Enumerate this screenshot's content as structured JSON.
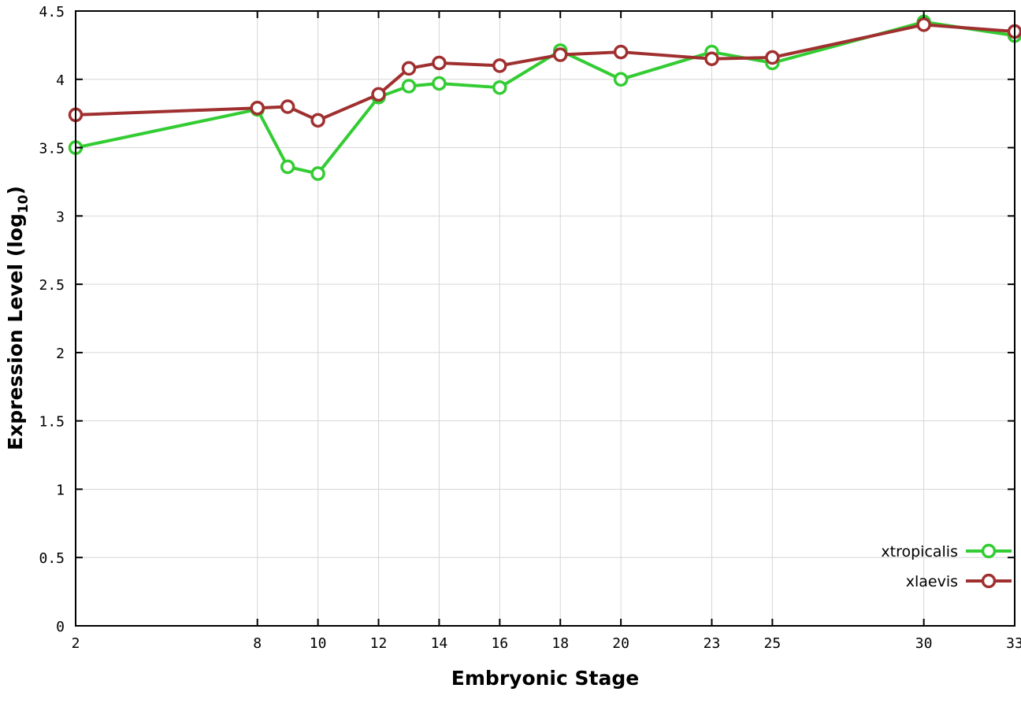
{
  "chart_data": {
    "type": "line",
    "title": "",
    "xlabel": "Embryonic Stage",
    "ylabel": "Expression Level (log10)",
    "ylabel_parts": {
      "main": "Expression Level (log",
      "sub": "10",
      "end": ")"
    },
    "xlim": [
      2,
      33
    ],
    "ylim": [
      0,
      4.5
    ],
    "x_ticks": [
      2,
      8,
      10,
      12,
      14,
      16,
      18,
      20,
      23,
      25,
      30,
      33
    ],
    "y_ticks": [
      0,
      0.5,
      1,
      1.5,
      2,
      2.5,
      3,
      3.5,
      4,
      4.5
    ],
    "grid": true,
    "legend_position": "bottom-right",
    "x": [
      2,
      8,
      9,
      10,
      12,
      13,
      14,
      16,
      18,
      20,
      23,
      25,
      30,
      33
    ],
    "series": [
      {
        "name": "xtropicalis",
        "color": "#33cc33",
        "values": [
          3.5,
          3.78,
          3.36,
          3.31,
          3.87,
          3.95,
          3.97,
          3.94,
          4.21,
          4.0,
          4.2,
          4.12,
          4.42,
          4.32
        ]
      },
      {
        "name": "xlaevis",
        "color": "#a03030",
        "values": [
          3.74,
          3.79,
          3.8,
          3.7,
          3.89,
          4.08,
          4.12,
          4.1,
          4.18,
          4.2,
          4.15,
          4.16,
          4.4,
          4.35
        ]
      }
    ]
  }
}
